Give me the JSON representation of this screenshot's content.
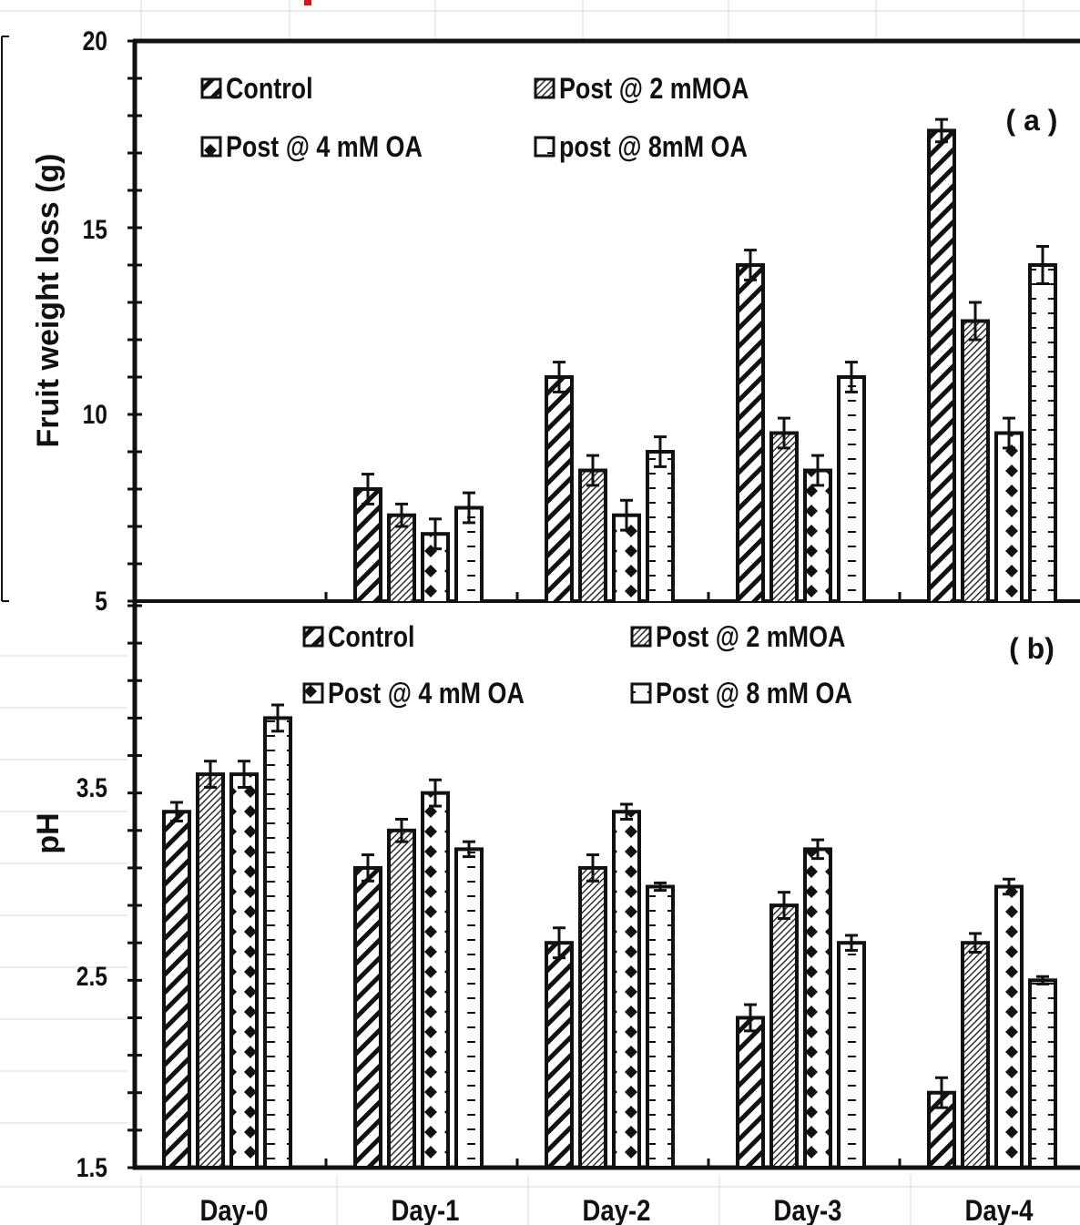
{
  "chart_data": [
    {
      "type": "bar",
      "panel_label": "( a )",
      "ylabel": "Fruit weight loss (g)",
      "ylim": [
        5,
        20
      ],
      "yticks": [
        "20",
        "15",
        "10",
        "5"
      ],
      "categories": [
        "Day-0",
        "Day-1",
        "Day-2",
        "Day-3",
        "Day-4"
      ],
      "series": [
        {
          "name": "Control",
          "pattern": "diag",
          "values": [
            null,
            8.0,
            11.0,
            14.0,
            17.6
          ],
          "errors": [
            null,
            0.4,
            0.4,
            0.4,
            0.3
          ]
        },
        {
          "name": "Post @  2 mMOA",
          "pattern": "hatch",
          "values": [
            null,
            7.3,
            8.5,
            9.5,
            12.5
          ],
          "errors": [
            null,
            0.3,
            0.4,
            0.4,
            0.5
          ]
        },
        {
          "name": "Post @ 4 mM OA",
          "pattern": "diamond",
          "values": [
            null,
            6.8,
            7.3,
            8.5,
            9.5
          ],
          "errors": [
            null,
            0.4,
            0.4,
            0.4,
            0.4
          ]
        },
        {
          "name": "post @ 8mM OA",
          "pattern": "dash",
          "values": [
            null,
            7.5,
            9.0,
            11.0,
            14.0
          ],
          "errors": [
            null,
            0.4,
            0.4,
            0.4,
            0.5
          ]
        }
      ],
      "legend_position": "top-left",
      "grid": false
    },
    {
      "type": "bar",
      "panel_label": "( b)",
      "ylabel": "pH",
      "ylim": [
        1.5,
        4.5
      ],
      "yticks": [
        "3.5",
        "2.5",
        "1.5"
      ],
      "categories": [
        "Day-0",
        "Day-1",
        "Day-2",
        "Day-3",
        "Day-4"
      ],
      "series": [
        {
          "name": "Control",
          "pattern": "diag",
          "values": [
            3.4,
            3.1,
            2.7,
            2.3,
            1.9
          ],
          "errors": [
            0.05,
            0.07,
            0.08,
            0.07,
            0.08
          ]
        },
        {
          "name": "Post @  2 mMOA",
          "pattern": "hatch",
          "values": [
            3.6,
            3.3,
            3.1,
            2.9,
            2.7
          ],
          "errors": [
            0.07,
            0.06,
            0.07,
            0.07,
            0.05
          ]
        },
        {
          "name": "Post @ 4 mM OA",
          "pattern": "diamond",
          "values": [
            3.6,
            3.5,
            3.4,
            3.2,
            3.0
          ],
          "errors": [
            0.07,
            0.07,
            0.04,
            0.05,
            0.04
          ]
        },
        {
          "name": " Post @ 8 mM OA",
          "pattern": "dash",
          "values": [
            3.9,
            3.2,
            3.0,
            2.7,
            2.5
          ],
          "errors": [
            0.07,
            0.04,
            0.02,
            0.04,
            0.02
          ]
        }
      ],
      "legend_position": "top",
      "grid": false
    }
  ]
}
